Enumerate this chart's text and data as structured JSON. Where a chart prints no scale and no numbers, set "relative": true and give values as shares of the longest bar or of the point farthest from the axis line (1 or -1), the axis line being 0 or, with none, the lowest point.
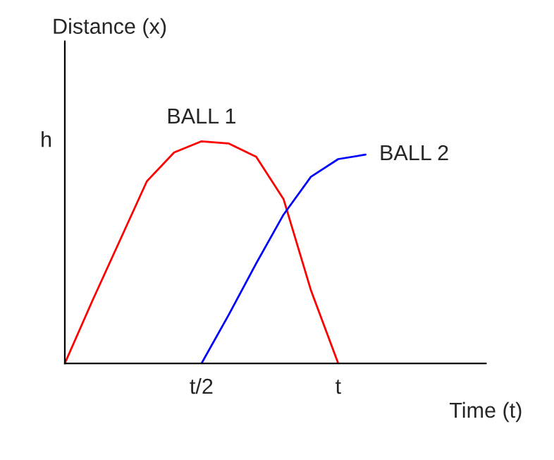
{
  "chart_data": {
    "type": "line",
    "xlabel": "Time (t)",
    "ylabel": "Distance (x)",
    "relative": true,
    "categories": [
      null,
      null,
      null,
      null,
      null,
      "t/2",
      null,
      null,
      null,
      null,
      "t",
      null,
      null,
      null,
      null,
      null
    ],
    "annotations": [
      "h"
    ],
    "grid": false,
    "legend": false,
    "marker": "none",
    "line_style": "solid",
    "series": [
      {
        "name": "BALL 1",
        "color": "#ff0000",
        "values": [
          0,
          0.28,
          0.55,
          0.82,
          0.95,
          1,
          0.99,
          0.93,
          0.74,
          0.33,
          0,
          null,
          null,
          null,
          null,
          null
        ]
      },
      {
        "name": "BALL 2",
        "color": "#0000ff",
        "values": [
          null,
          null,
          null,
          null,
          null,
          0,
          0.22,
          0.45,
          0.67,
          0.84,
          0.92,
          0.94,
          null,
          null,
          null,
          null
        ]
      }
    ]
  }
}
